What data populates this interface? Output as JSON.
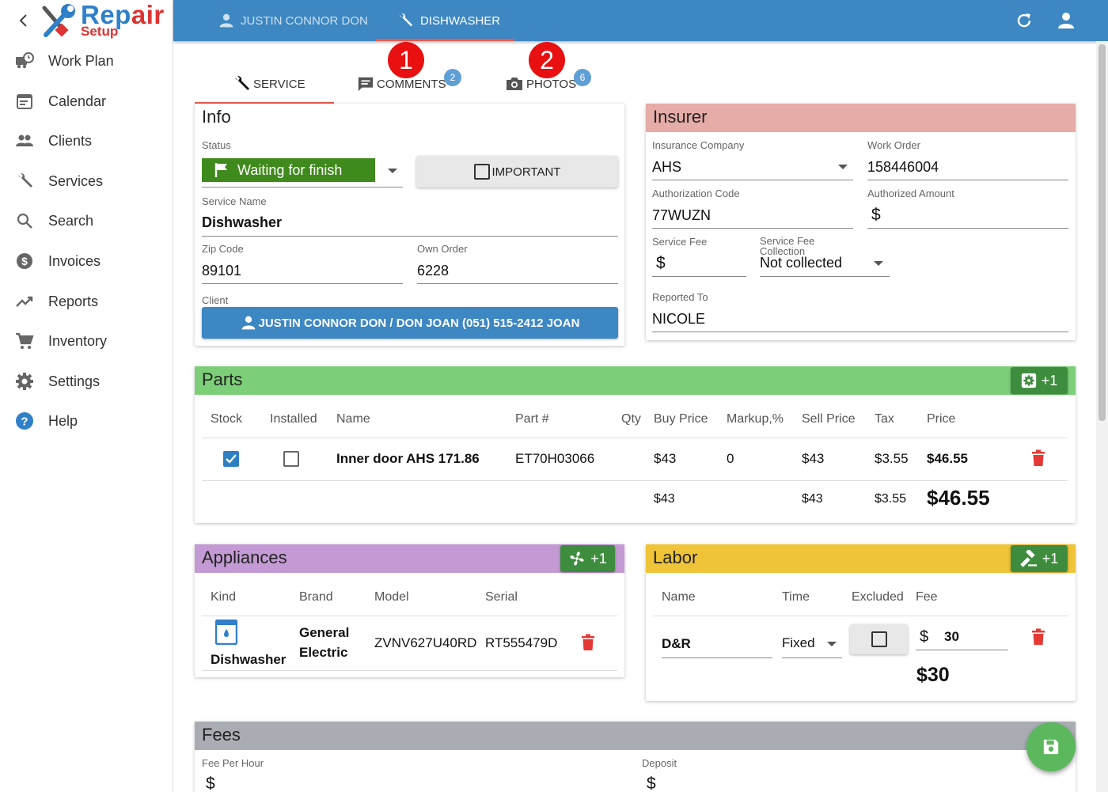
{
  "app": {
    "logo_main": "Rep",
    "logo_accent": "air",
    "logo_sub": "Setup"
  },
  "sidebar": {
    "items": [
      {
        "label": "Work Plan",
        "icon": "truck-clock-icon"
      },
      {
        "label": "Calendar",
        "icon": "calendar-icon"
      },
      {
        "label": "Clients",
        "icon": "people-icon"
      },
      {
        "label": "Services",
        "icon": "wrench-icon"
      },
      {
        "label": "Search",
        "icon": "search-icon"
      },
      {
        "label": "Invoices",
        "icon": "dollar-circle-icon"
      },
      {
        "label": "Reports",
        "icon": "trending-up-icon"
      },
      {
        "label": "Inventory",
        "icon": "cart-icon"
      },
      {
        "label": "Settings",
        "icon": "gear-icon"
      },
      {
        "label": "Help",
        "icon": "help-circle-icon"
      }
    ]
  },
  "topbar": {
    "client_tab": "JUSTIN CONNOR DON",
    "service_tab": "DISHWASHER"
  },
  "tabs": {
    "service": "SERVICE",
    "comments": "COMMENTS",
    "comments_count": "2",
    "photos": "PHOTOS",
    "photos_count": "6",
    "marker1": "1",
    "marker2": "2"
  },
  "info": {
    "title": "Info",
    "status_label": "Status",
    "status_value": "Waiting for finish",
    "important_label": "IMPORTANT",
    "service_name_label": "Service Name",
    "service_name": "Dishwasher",
    "zip_label": "Zip Code",
    "zip": "89101",
    "own_order_label": "Own Order",
    "own_order": "6228",
    "client_label": "Client",
    "client_button": "JUSTIN CONNOR DON / DON JOAN (051) 515-2412 JOAN"
  },
  "insurer": {
    "title": "Insurer",
    "company_label": "Insurance Company",
    "company": "AHS",
    "work_order_label": "Work Order",
    "work_order": "158446004",
    "auth_code_label": "Authorization Code",
    "auth_code": "77WUZN",
    "auth_amount_label": "Authorized Amount",
    "auth_amount": "$",
    "service_fee_label": "Service Fee",
    "service_fee": "$",
    "fee_collection_label": "Service Fee Collection",
    "fee_collection": "Not collected",
    "reported_label": "Reported To",
    "reported": "NICOLE"
  },
  "parts": {
    "title": "Parts",
    "add": "+1",
    "headers": [
      "Stock",
      "Installed",
      "Name",
      "Part #",
      "Qty",
      "Buy Price",
      "Markup,%",
      "Sell Price",
      "Tax",
      "Price"
    ],
    "row": {
      "name": "Inner door AHS 171.86",
      "part": "ET70H03066",
      "qty": "",
      "buy": "$43",
      "markup": "0",
      "sell": "$43",
      "tax": "$3.55",
      "price": "$46.55",
      "stock": true,
      "installed": false
    },
    "totals": {
      "buy": "$43",
      "sell": "$43",
      "tax": "$3.55",
      "price": "$46.55"
    }
  },
  "appliances": {
    "title": "Appliances",
    "add": "+1",
    "headers": [
      "Kind",
      "Brand",
      "Model",
      "Serial"
    ],
    "row": {
      "kind": "Dishwasher",
      "brand_line1": "General",
      "brand_line2": "Electric",
      "model": "ZVNV627U40RD",
      "serial": "RT555479D"
    }
  },
  "labor": {
    "title": "Labor",
    "add": "+1",
    "headers": [
      "Name",
      "Time",
      "Excluded",
      "Fee"
    ],
    "row": {
      "name": "D&R",
      "time": "Fixed",
      "fee_currency": "$",
      "fee": "30"
    },
    "total": "$30"
  },
  "fees": {
    "title": "Fees",
    "per_hour_label": "Fee Per Hour",
    "per_hour": "$",
    "deposit_label": "Deposit",
    "deposit": "$"
  },
  "colors": {
    "topbar": "#3d87c2",
    "parts": "#7ccf78",
    "appliances": "#c39ad4",
    "labor": "#efc438",
    "insurer": "#e6aca8",
    "fees": "#a9adb3",
    "status": "#3f8a1c"
  }
}
